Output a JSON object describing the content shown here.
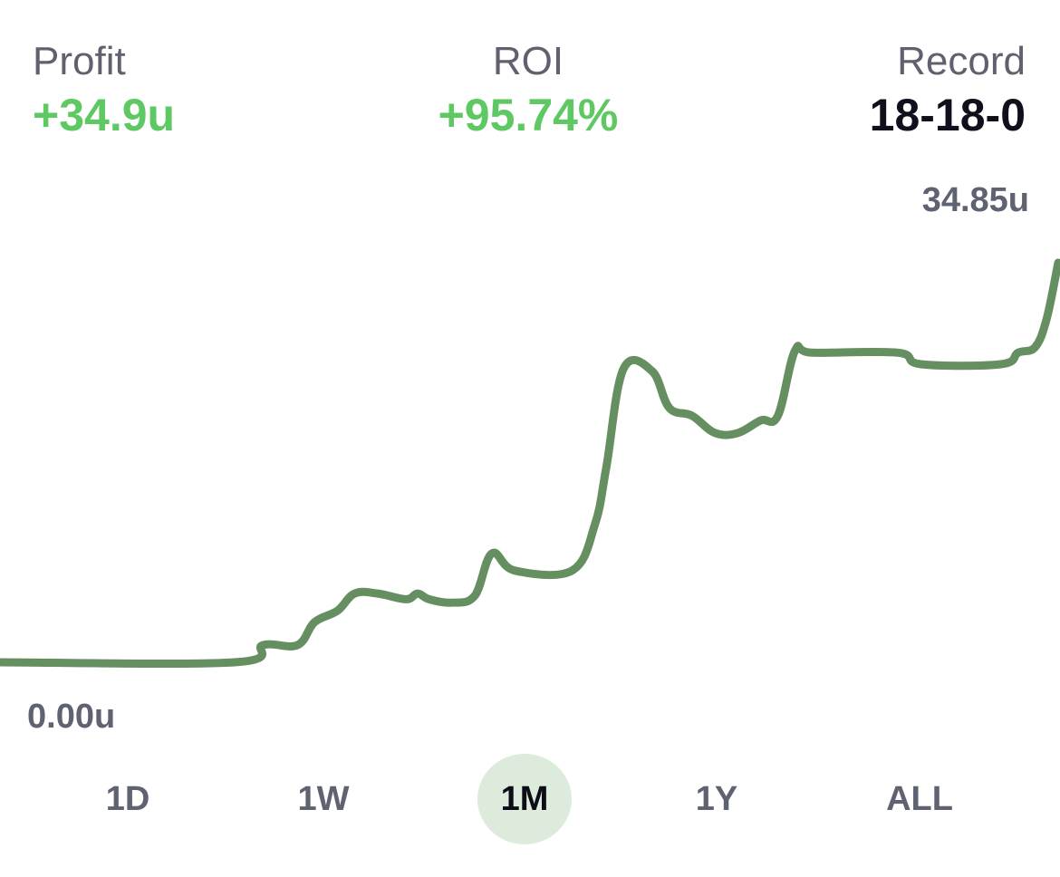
{
  "stats": {
    "profit": {
      "label": "Profit",
      "value": "+34.9u"
    },
    "roi": {
      "label": "ROI",
      "value": "+95.74%"
    },
    "record": {
      "label": "Record",
      "value": "18-18-0"
    }
  },
  "colors": {
    "positive": "#5ec862",
    "record_value": "#10101c",
    "line": "#658f60",
    "selected_pill": "#dcebdc"
  },
  "ranges": [
    {
      "label": "1D",
      "selected": false
    },
    {
      "label": "1W",
      "selected": false
    },
    {
      "label": "1M",
      "selected": true
    },
    {
      "label": "1Y",
      "selected": false
    },
    {
      "label": "ALL",
      "selected": false
    }
  ],
  "chart_data": {
    "type": "line",
    "max_label": "34.85u",
    "min_label": "0.00u",
    "ylim": [
      0,
      34.85
    ],
    "series": [
      {
        "values": [
          [
            0,
            0
          ],
          [
            41,
            0
          ],
          [
            46,
            1.5
          ],
          [
            52,
            1.5
          ],
          [
            55,
            3.5
          ],
          [
            59,
            4.5
          ],
          [
            62,
            6.0
          ],
          [
            66,
            6.0
          ],
          [
            71,
            5.5
          ],
          [
            73,
            6.0
          ],
          [
            75,
            5.5
          ],
          [
            79,
            5.2
          ],
          [
            83,
            5.8
          ],
          [
            86,
            9.5
          ],
          [
            90,
            8.0
          ],
          [
            100,
            8.0
          ],
          [
            104,
            12.0
          ],
          [
            106,
            17.0
          ],
          [
            109,
            25.6
          ],
          [
            114,
            25.4
          ],
          [
            117,
            22.2
          ],
          [
            121,
            21.5
          ],
          [
            125,
            20.0
          ],
          [
            129,
            20.0
          ],
          [
            133,
            21.1
          ],
          [
            136,
            21.5
          ],
          [
            139,
            27.2
          ],
          [
            142,
            27.0
          ],
          [
            157,
            27.0
          ],
          [
            161,
            26.0
          ],
          [
            175,
            26.0
          ],
          [
            178,
            27.0
          ],
          [
            181,
            27.5
          ],
          [
            183,
            30.0
          ],
          [
            185,
            34.85
          ]
        ]
      }
    ]
  }
}
